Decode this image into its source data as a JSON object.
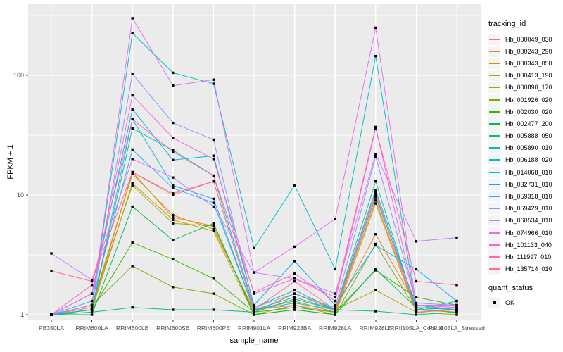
{
  "chart_data": {
    "type": "line",
    "xlabel": "sample_name",
    "ylabel": "FPKM + 1",
    "y_scale": "log10",
    "y_ticks": [
      1,
      10,
      100
    ],
    "y_minor_ticks": [
      3.16,
      31.6,
      316
    ],
    "ylim": [
      0.9,
      390
    ],
    "grid": "on",
    "legend_position": "right",
    "point_marker": "black-square",
    "categories": [
      "PB350LA",
      "RRIM600LA",
      "RRIM600LE",
      "RRIM600SE",
      "RRIM600PE",
      "RRIM901LA",
      "RRIM928BA",
      "RRIM928LA",
      "RRIM928LE",
      "RRII105LA_Control",
      "RRII105LA_Stressed"
    ],
    "series": [
      {
        "name": "Hb_000049_030",
        "color": "#F8766D",
        "values": [
          1,
          1.1,
          15.5,
          10,
          13,
          1.1,
          1.2,
          1.05,
          10,
          1.1,
          1.05
        ]
      },
      {
        "name": "Hb_000243_290",
        "color": "#EA8331",
        "values": [
          1,
          1.15,
          15.5,
          6.5,
          5.5,
          1.05,
          1.5,
          1.1,
          4.7,
          1.2,
          1.1
        ]
      },
      {
        "name": "Hb_000343_050",
        "color": "#D89000",
        "values": [
          1,
          1.2,
          15,
          6.8,
          5.2,
          1.1,
          1.3,
          1.05,
          9,
          1.1,
          1.05
        ]
      },
      {
        "name": "Hb_000413_190",
        "color": "#C09B00",
        "values": [
          1,
          1.1,
          12.5,
          6.2,
          5,
          1,
          1.2,
          1,
          8.5,
          1.05,
          1.1
        ]
      },
      {
        "name": "Hb_000890_170",
        "color": "#A3A500",
        "values": [
          1,
          1.2,
          12,
          5.8,
          5.5,
          1.05,
          1.5,
          1.1,
          1.6,
          1.05,
          1
        ]
      },
      {
        "name": "Hb_001926_020",
        "color": "#7CAE00",
        "values": [
          1,
          1.2,
          2.55,
          1.7,
          1.5,
          1,
          1.1,
          1,
          3.9,
          1.1,
          1.05
        ]
      },
      {
        "name": "Hb_002030_020",
        "color": "#39B600",
        "values": [
          1,
          1.1,
          4,
          2.9,
          2,
          1.05,
          1.15,
          1.05,
          2.35,
          1.4,
          1.2
        ]
      },
      {
        "name": "Hb_002477_200",
        "color": "#00BB4E",
        "values": [
          1,
          1,
          8,
          4.2,
          5.8,
          1,
          1.1,
          1,
          2.4,
          1.15,
          1.1
        ]
      },
      {
        "name": "Hb_005888_050",
        "color": "#00BF7D",
        "values": [
          1,
          1.05,
          1.15,
          1.1,
          1.1,
          1.05,
          1.35,
          1.1,
          1.07,
          1,
          1.05
        ]
      },
      {
        "name": "Hb_005890_010",
        "color": "#00C1A3",
        "values": [
          1,
          1.1,
          36,
          23.7,
          14.5,
          1.15,
          1.6,
          1.1,
          13,
          1.1,
          1.15
        ]
      },
      {
        "name": "Hb_006188_020",
        "color": "#00BFC4",
        "values": [
          1,
          1.2,
          225,
          105,
          85,
          3.6,
          12,
          2.4,
          145,
          1.1,
          1.3
        ]
      },
      {
        "name": "Hb_014068_010",
        "color": "#00BAE0",
        "values": [
          1,
          1.1,
          43,
          12,
          9.3,
          1.1,
          1.25,
          1.1,
          11,
          1.15,
          1.1
        ]
      },
      {
        "name": "Hb_032731_010",
        "color": "#00B0F6",
        "values": [
          1,
          1.5,
          52,
          19.6,
          21.3,
          1.2,
          2.8,
          1.2,
          3.8,
          2.4,
          1.3
        ]
      },
      {
        "name": "Hb_059318_010",
        "color": "#35A2FF",
        "values": [
          1,
          1.3,
          24,
          11.4,
          8.6,
          1.1,
          1.4,
          1.1,
          9.6,
          1.2,
          1.1
        ]
      },
      {
        "name": "Hb_059429_010",
        "color": "#9590FF",
        "values": [
          1,
          1.2,
          103,
          40,
          29,
          1.15,
          1.5,
          1.15,
          21,
          1.25,
          1.2
        ]
      },
      {
        "name": "Hb_060534_010",
        "color": "#C77CFF",
        "values": [
          3.25,
          1.95,
          20,
          14,
          8,
          2.25,
          2,
          1.5,
          22,
          4.1,
          4.4
        ]
      },
      {
        "name": "Hb_074966_010",
        "color": "#E76BF3",
        "values": [
          1,
          1.2,
          300,
          82,
          92,
          2.25,
          3.7,
          6.3,
          250,
          1.2,
          1.2
        ]
      },
      {
        "name": "Hb_101133_040",
        "color": "#FA62DB",
        "values": [
          1,
          1.5,
          68,
          30,
          20,
          1.5,
          2,
          1.4,
          37,
          1.2,
          1.15
        ]
      },
      {
        "name": "Hb_111997_010",
        "color": "#FF62BC",
        "values": [
          1,
          1.77,
          43,
          23,
          14.5,
          1.54,
          2.2,
          1.3,
          36,
          1.9,
          1.77
        ]
      },
      {
        "name": "Hb_135714_010",
        "color": "#FF6A98",
        "values": [
          2.32,
          1.9,
          15.5,
          10.3,
          13,
          1.1,
          1.9,
          1.1,
          10.5,
          1.05,
          1.1
        ]
      }
    ]
  },
  "legend": {
    "tracking_title": "tracking_id",
    "quant_title": "quant_status",
    "quant_items": [
      {
        "label": "OK",
        "marker": "black-square"
      }
    ]
  },
  "style": {
    "panel_bg": "#EBEBEB",
    "grid_color": "#FFFFFF",
    "tick_color": "#333333",
    "tick_label_color": "#4D4D4D",
    "axis_title_color": "#000000",
    "marker_color": "#000000",
    "legend_key_bg": "#F4F4F4"
  }
}
